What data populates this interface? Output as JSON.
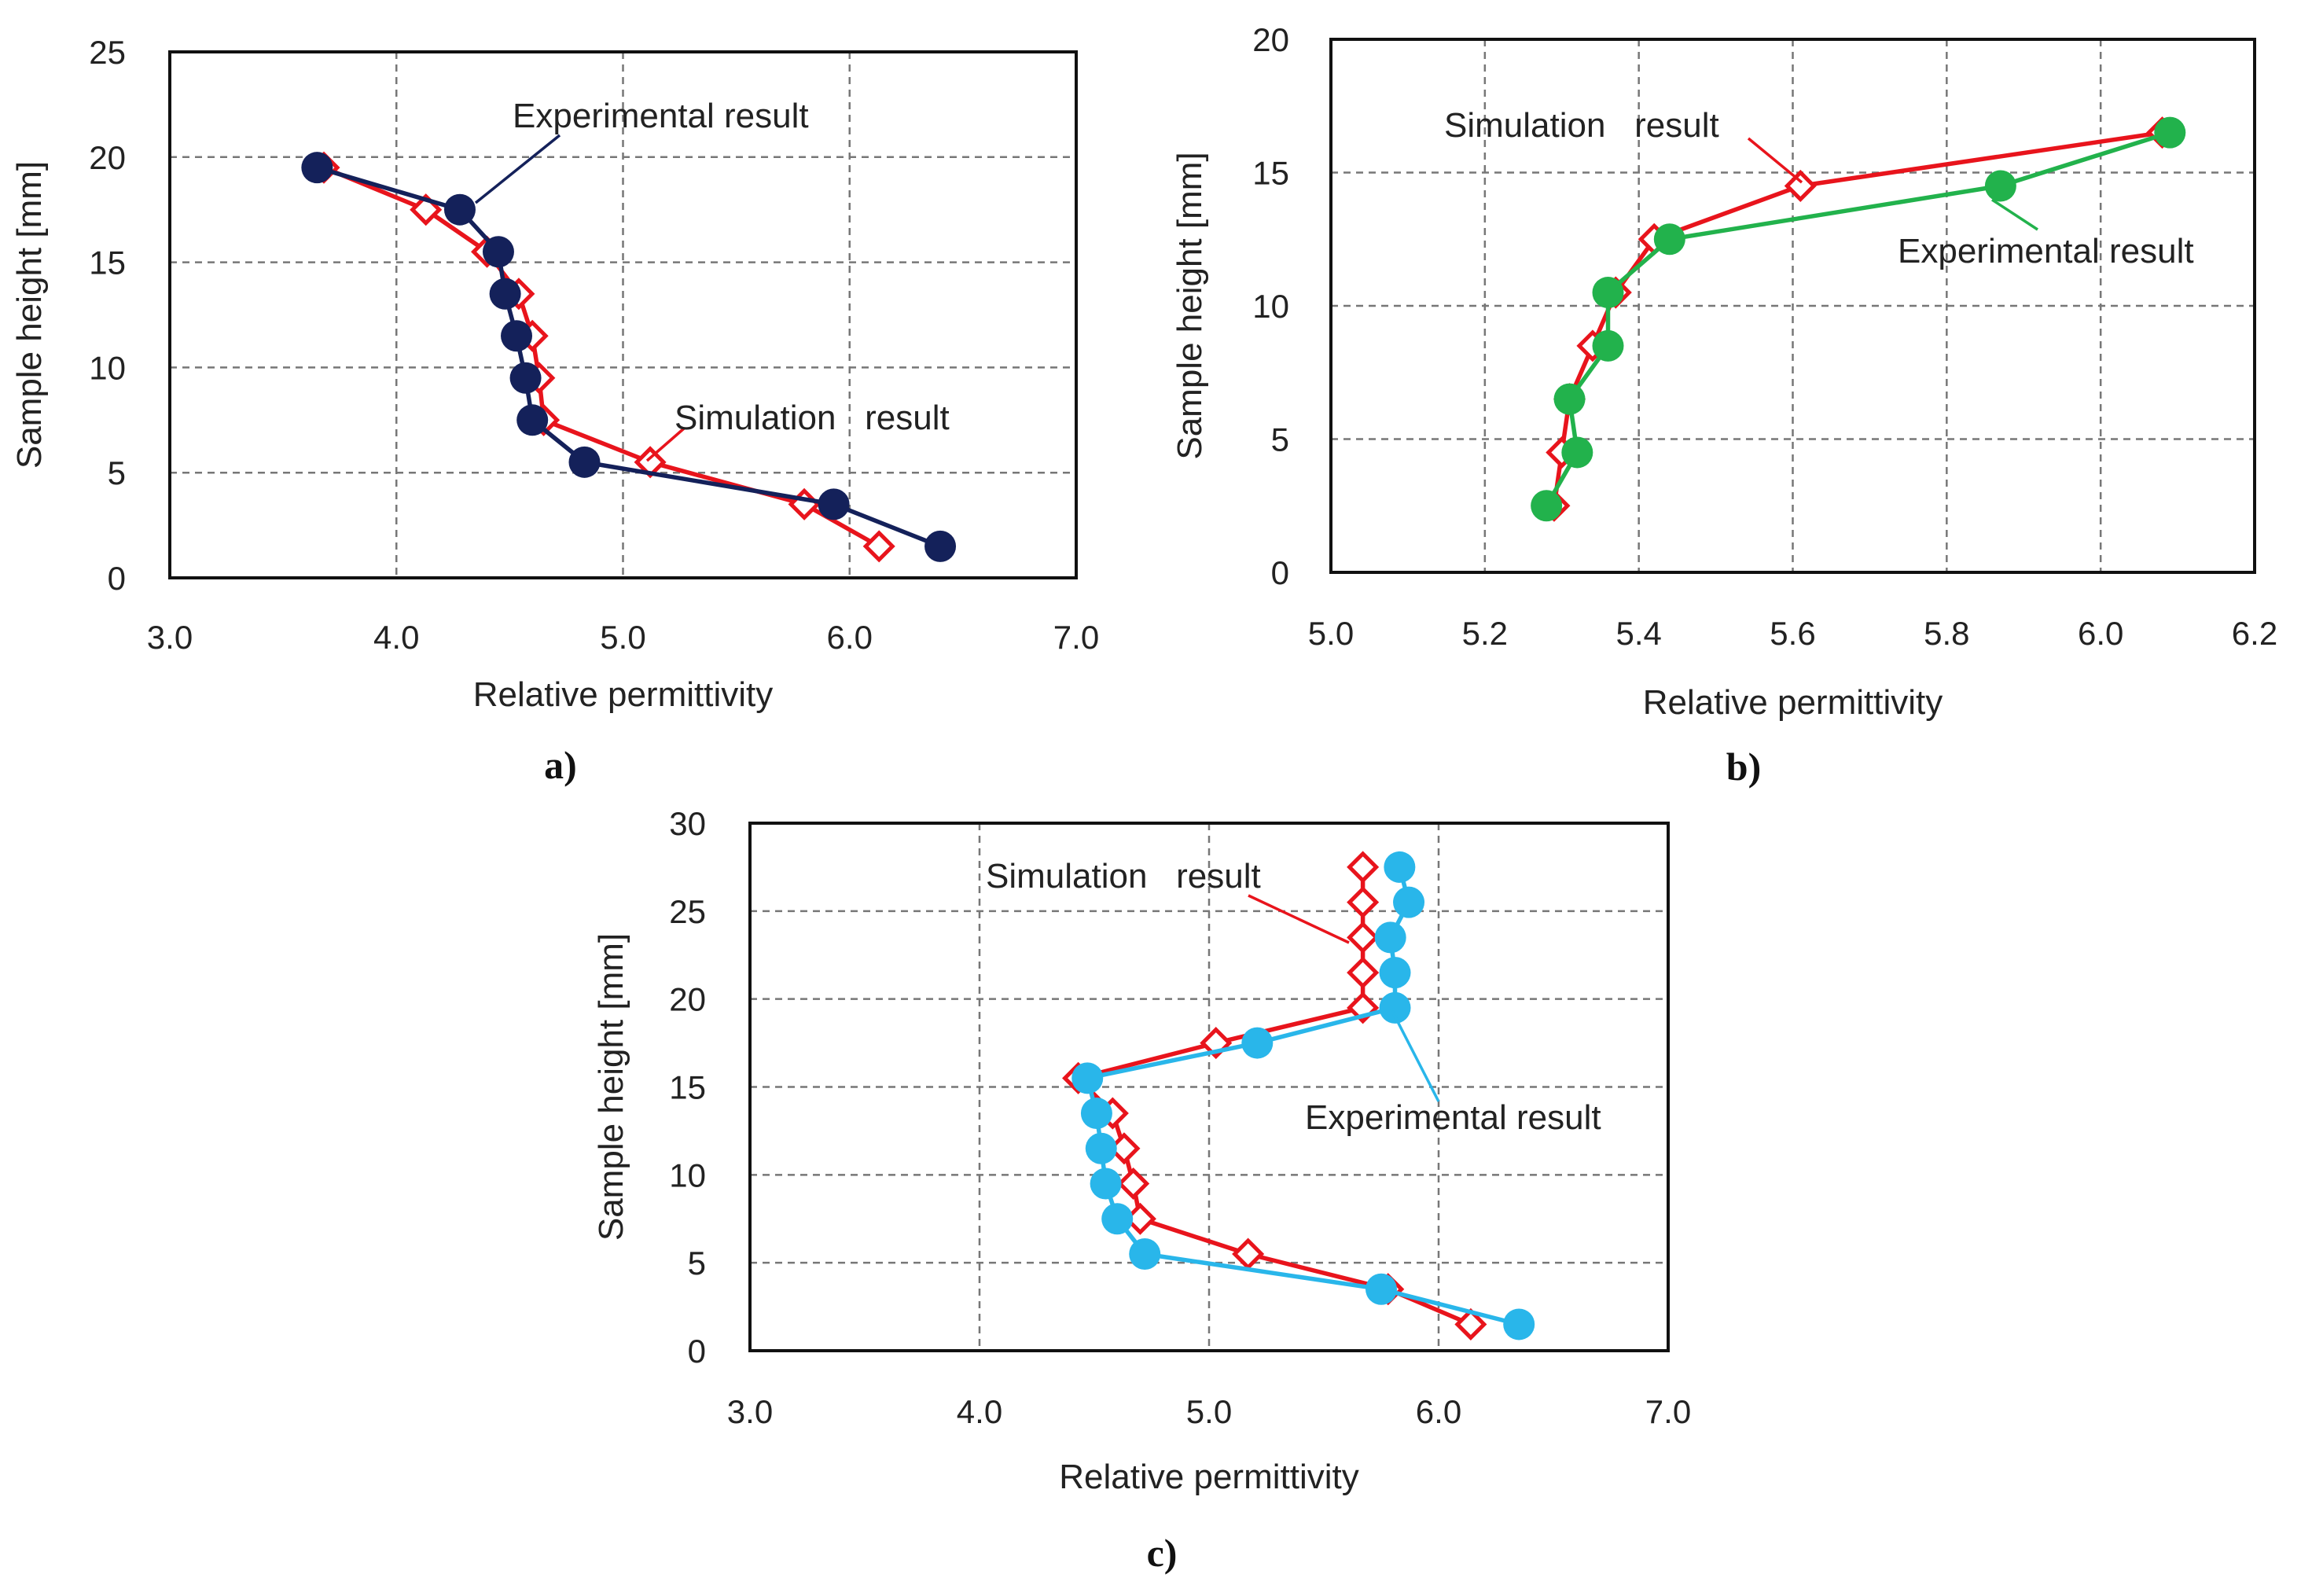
{
  "colors": {
    "simulation": "#e8141c",
    "experimental_a": "#14215a",
    "experimental_b": "#22b24c",
    "experimental_c": "#29b6ea",
    "grid": "#777777",
    "frame": "#111111"
  },
  "chart_data": [
    {
      "type": "line",
      "panel_label": "a)",
      "xlabel": "Relative permittivity",
      "ylabel": "Sample height [mm]",
      "xlim": [
        3.0,
        7.0
      ],
      "ylim": [
        0,
        25
      ],
      "x_ticks": [
        "3.0",
        "4.0",
        "5.0",
        "6.0",
        "7.0"
      ],
      "y_ticks": [
        "0",
        "5",
        "10",
        "15",
        "20",
        "25"
      ],
      "grid": true,
      "series": [
        {
          "name": "Simulation result",
          "marker": "diamond",
          "color": "#e8141c",
          "x": [
            3.68,
            4.13,
            4.4,
            4.54,
            4.6,
            4.63,
            4.65,
            5.12,
            5.8,
            6.13
          ],
          "y": [
            19.5,
            17.5,
            15.5,
            13.5,
            11.5,
            9.5,
            7.5,
            5.5,
            3.5,
            1.5
          ]
        },
        {
          "name": "Experimental result",
          "marker": "circle",
          "color": "#14215a",
          "x": [
            3.65,
            4.28,
            4.45,
            4.48,
            4.53,
            4.57,
            4.6,
            4.83,
            5.93,
            6.4
          ],
          "y": [
            19.5,
            17.5,
            15.5,
            13.5,
            11.5,
            9.5,
            7.5,
            5.5,
            3.5,
            1.5
          ]
        }
      ],
      "annotations": [
        {
          "text": "Experimental result",
          "series": "Experimental result"
        },
        {
          "text": "Simulation   result",
          "series": "Simulation result"
        }
      ]
    },
    {
      "type": "line",
      "panel_label": "b)",
      "xlabel": "Relative permittivity",
      "ylabel": "Sample height [mm]",
      "xlim": [
        5.0,
        6.2
      ],
      "ylim": [
        0,
        20
      ],
      "x_ticks": [
        "5.0",
        "5.2",
        "5.4",
        "5.6",
        "5.8",
        "6.0",
        "6.2"
      ],
      "y_ticks": [
        "0",
        "5",
        "10",
        "15",
        "20"
      ],
      "grid": true,
      "series": [
        {
          "name": "Simulation result",
          "marker": "diamond",
          "color": "#e8141c",
          "x": [
            5.29,
            5.3,
            5.31,
            5.34,
            5.37,
            5.42,
            5.61,
            6.08
          ],
          "y": [
            2.5,
            4.5,
            6.5,
            8.5,
            10.5,
            12.5,
            14.5,
            16.5
          ]
        },
        {
          "name": "Experimental result",
          "marker": "circle",
          "color": "#22b24c",
          "x": [
            5.28,
            5.32,
            5.31,
            5.36,
            5.36,
            5.44,
            5.87,
            6.09
          ],
          "y": [
            2.5,
            4.5,
            6.5,
            8.5,
            10.5,
            12.5,
            14.5,
            16.5
          ]
        }
      ],
      "annotations": [
        {
          "text": "Simulation   result",
          "series": "Simulation result"
        },
        {
          "text": "Experimental result",
          "series": "Experimental result"
        }
      ]
    },
    {
      "type": "line",
      "panel_label": "c)",
      "xlabel": "Relative permittivity",
      "ylabel": "Sample height [mm]",
      "xlim": [
        3.0,
        7.0
      ],
      "ylim": [
        0,
        30
      ],
      "x_ticks": [
        "3.0",
        "4.0",
        "5.0",
        "6.0",
        "7.0"
      ],
      "y_ticks": [
        "0",
        "5",
        "10",
        "15",
        "20",
        "25",
        "30"
      ],
      "grid": true,
      "series": [
        {
          "name": "Simulation result",
          "marker": "diamond",
          "color": "#e8141c",
          "x": [
            5.67,
            5.67,
            5.67,
            5.67,
            5.67,
            5.03,
            4.43,
            4.58,
            4.63,
            4.67,
            4.7,
            5.17,
            5.78,
            6.14
          ],
          "y": [
            27.5,
            25.5,
            23.5,
            21.5,
            19.5,
            17.5,
            15.5,
            13.5,
            11.5,
            9.5,
            7.5,
            5.5,
            3.5,
            1.5
          ]
        },
        {
          "name": "Experimental result",
          "marker": "circle",
          "color": "#29b6ea",
          "x": [
            5.83,
            5.87,
            5.79,
            5.81,
            5.81,
            5.21,
            4.47,
            4.51,
            4.53,
            4.55,
            4.6,
            4.72,
            5.75,
            6.35
          ],
          "y": [
            27.5,
            25.5,
            23.5,
            21.5,
            19.5,
            17.5,
            15.5,
            13.5,
            11.5,
            9.5,
            7.5,
            5.5,
            3.5,
            1.5
          ]
        }
      ],
      "annotations": [
        {
          "text": "Simulation   result",
          "series": "Simulation result"
        },
        {
          "text": "Experimental result",
          "series": "Experimental result"
        }
      ]
    }
  ]
}
